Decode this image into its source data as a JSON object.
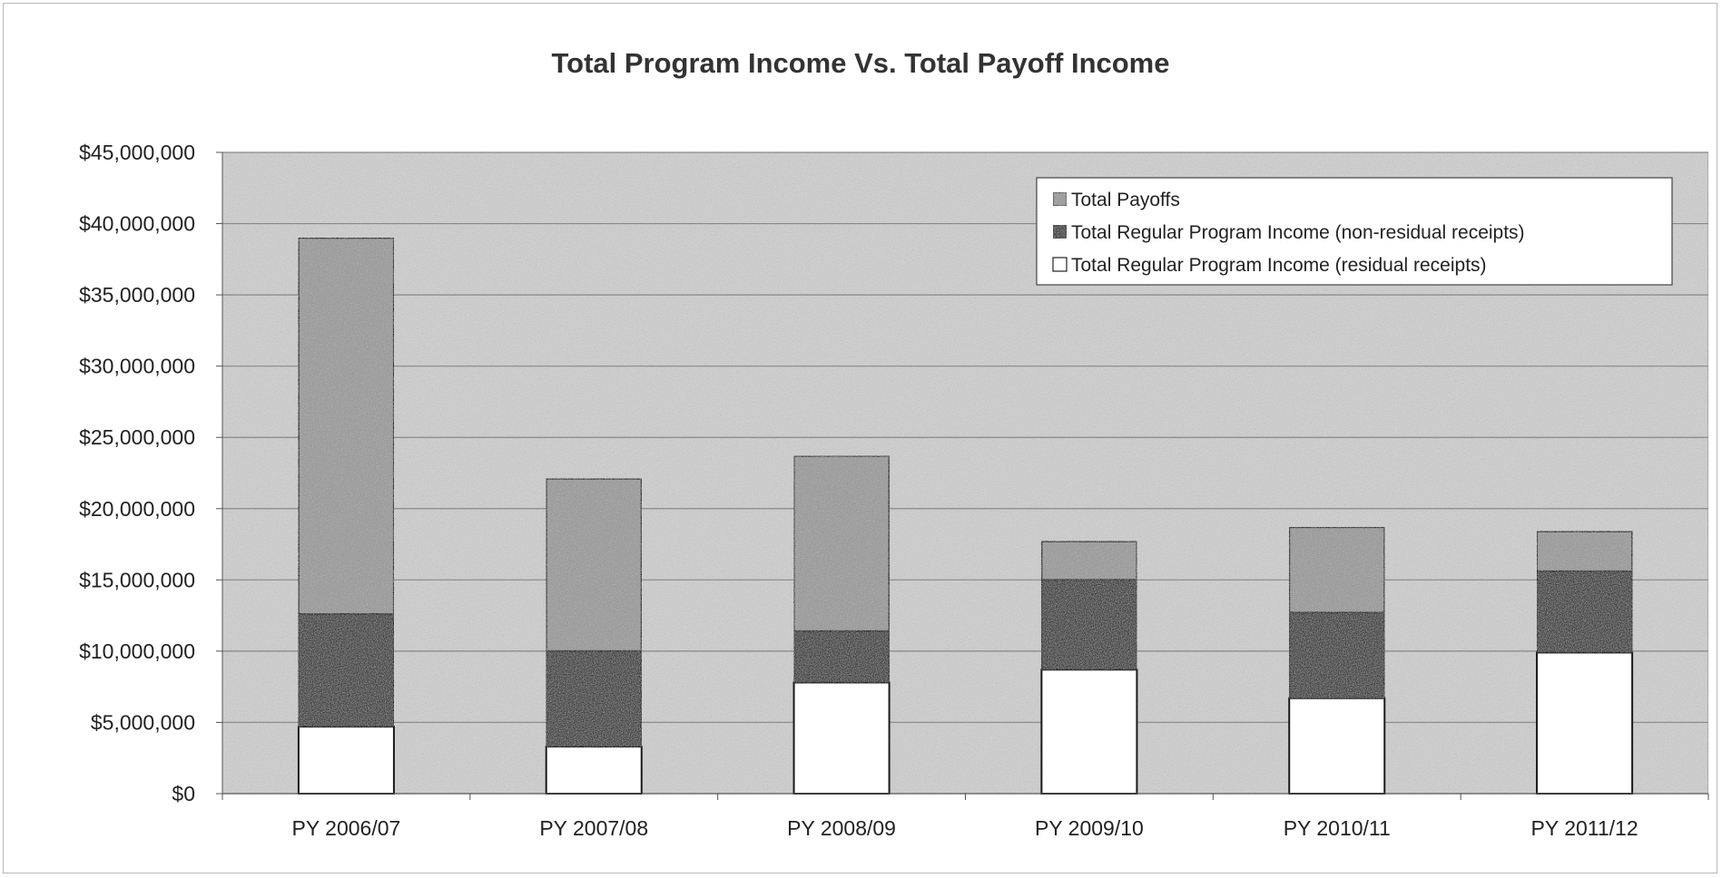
{
  "chart_data": {
    "type": "bar",
    "stacked": true,
    "title": "Total Program Income Vs. Total Payoff Income",
    "xlabel": "",
    "ylabel": "",
    "categories": [
      "PY 2006/07",
      "PY 2007/08",
      "PY 2008/09",
      "PY 2009/10",
      "PY 2010/11",
      "PY 2011/12"
    ],
    "series": [
      {
        "name": "Total Regular Program Income (residual receipts)",
        "color": "#ffffff",
        "values": [
          4700000,
          3300000,
          7800000,
          8700000,
          6700000,
          9900000
        ]
      },
      {
        "name": "Total Regular Program Income (non-residual receipts)",
        "color": "#3c3c3c",
        "values": [
          7900000,
          6700000,
          3600000,
          6300000,
          6000000,
          5700000
        ]
      },
      {
        "name": "Total Payoffs",
        "color": "#9a9a9a",
        "values": [
          26400000,
          12100000,
          12300000,
          2700000,
          6000000,
          2800000
        ]
      }
    ],
    "ylim": [
      0,
      45000000
    ],
    "yticks": [
      "$0",
      "$5,000,000",
      "$10,000,000",
      "$15,000,000",
      "$20,000,000",
      "$25,000,000",
      "$30,000,000",
      "$35,000,000",
      "$40,000,000",
      "$45,000,000"
    ],
    "ytick_values": [
      0,
      5000000,
      10000000,
      15000000,
      20000000,
      25000000,
      30000000,
      35000000,
      40000000,
      45000000
    ],
    "grid": true,
    "legend": {
      "placement": "top-right",
      "entries": [
        "Total Payoffs",
        "Total Regular Program Income (non-residual receipts)",
        "Total Regular Program Income (residual receipts)"
      ]
    },
    "colors": {
      "plot_background": "#cfcfcf",
      "gridline": "#888888",
      "bar_outline": "#1a1a1a"
    }
  }
}
